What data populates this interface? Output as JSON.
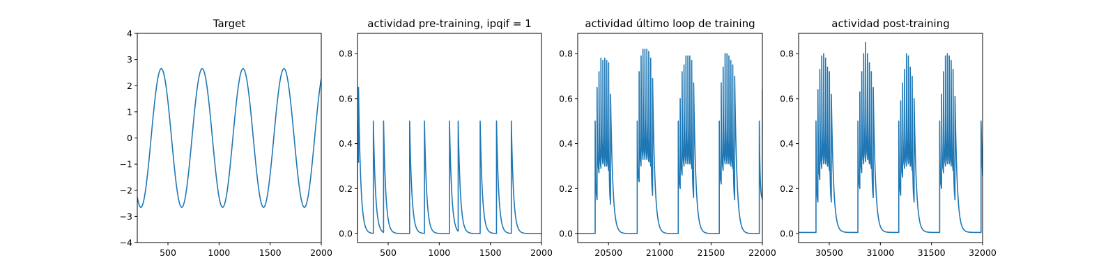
{
  "chart_data": [
    {
      "type": "line",
      "title": "Target",
      "xlabel": "",
      "ylabel": "",
      "xlim": [
        200,
        2000
      ],
      "ylim": [
        -4,
        4
      ],
      "xticks": [
        500,
        1000,
        1500,
        2000
      ],
      "yticks": [
        -4,
        -3,
        -2,
        -1,
        0,
        1,
        2,
        3,
        4
      ],
      "xtick_labels": [
        "500",
        "1000",
        "1500",
        "2000"
      ],
      "ytick_labels": [
        "−4",
        "−3",
        "−2",
        "−1",
        "0",
        "1",
        "2",
        "3",
        "4"
      ],
      "grid": false,
      "series": [
        {
          "color": "#1f77b4",
          "shape": "sine",
          "amplitude": 2.65,
          "period": 400,
          "peaks_x": [
            435,
            835,
            1235,
            1635
          ],
          "x": [
            200,
            235,
            335,
            435,
            535,
            635,
            735,
            835,
            935,
            1035,
            1135,
            1235,
            1335,
            1435,
            1535,
            1635,
            1735,
            1835,
            1935,
            2000
          ],
          "values": [
            -2.45,
            -2.65,
            0,
            2.65,
            0,
            -2.65,
            0,
            2.65,
            0,
            -2.65,
            0,
            2.65,
            0,
            -2.65,
            0,
            2.65,
            0,
            -2.65,
            0,
            2.2
          ]
        }
      ]
    },
    {
      "type": "line",
      "title": "actividad pre-training, ipqif = 1",
      "xlabel": "",
      "ylabel": "",
      "xlim": [
        200,
        2000
      ],
      "ylim": [
        -0.04,
        0.89
      ],
      "xticks": [
        500,
        1000,
        1500,
        2000
      ],
      "yticks": [
        0.0,
        0.2,
        0.4,
        0.6,
        0.8
      ],
      "xtick_labels": [
        "500",
        "1000",
        "1500",
        "2000"
      ],
      "ytick_labels": [
        "0.0",
        "0.2",
        "0.4",
        "0.6",
        "0.8"
      ],
      "grid": false,
      "series": [
        {
          "color": "#1f77b4",
          "shape": "spikes",
          "decay": 22,
          "spikes": [
            {
              "x": 200,
              "y": 0.5
            },
            {
              "x": 210,
              "y": 0.65
            },
            {
              "x": 355,
              "y": 0.5
            },
            {
              "x": 455,
              "y": 0.5
            },
            {
              "x": 710,
              "y": 0.5
            },
            {
              "x": 855,
              "y": 0.5
            },
            {
              "x": 1100,
              "y": 0.5
            },
            {
              "x": 1185,
              "y": 0.5
            },
            {
              "x": 1400,
              "y": 0.5
            },
            {
              "x": 1560,
              "y": 0.5
            },
            {
              "x": 1705,
              "y": 0.5
            }
          ]
        }
      ]
    },
    {
      "type": "line",
      "title": "actividad último loop de training",
      "xlabel": "",
      "ylabel": "",
      "xlim": [
        20200,
        22000
      ],
      "ylim": [
        -0.04,
        0.89
      ],
      "xticks": [
        20500,
        21000,
        21500,
        22000
      ],
      "yticks": [
        0.0,
        0.2,
        0.4,
        0.6,
        0.8
      ],
      "xtick_labels": [
        "20500",
        "21000",
        "21500",
        "22000"
      ],
      "ytick_labels": [
        "0.0",
        "0.2",
        "0.4",
        "0.6",
        "0.8"
      ],
      "grid": false,
      "series": [
        {
          "color": "#1f77b4",
          "shape": "bursts",
          "decay": 22,
          "baseline": 0.0,
          "bursts": [
            {
              "x_start": 20370,
              "x_end": 20520,
              "peaks": [
                0.5,
                0.65,
                0.72,
                0.78,
                0.77,
                0.78,
                0.77,
                0.76,
                0.62
              ],
              "troughs": [
                0.15,
                0.27,
                0.29,
                0.31,
                0.3,
                0.3,
                0.28,
                0.13
              ]
            },
            {
              "x_start": 20780,
              "x_end": 20930,
              "peaks": [
                0.5,
                0.72,
                0.79,
                0.82,
                0.82,
                0.82,
                0.81,
                0.78,
                0.69
              ],
              "troughs": [
                0.23,
                0.3,
                0.33,
                0.33,
                0.33,
                0.32,
                0.3,
                0.17
              ]
            },
            {
              "x_start": 21180,
              "x_end": 21330,
              "peaks": [
                0.5,
                0.6,
                0.72,
                0.75,
                0.79,
                0.79,
                0.79,
                0.77,
                0.67
              ],
              "troughs": [
                0.2,
                0.26,
                0.3,
                0.31,
                0.31,
                0.31,
                0.29,
                0.16
              ]
            },
            {
              "x_start": 21580,
              "x_end": 21730,
              "peaks": [
                0.5,
                0.67,
                0.74,
                0.8,
                0.8,
                0.79,
                0.77,
                0.75,
                0.7
              ],
              "troughs": [
                0.22,
                0.28,
                0.31,
                0.31,
                0.31,
                0.3,
                0.29,
                0.15
              ]
            },
            {
              "x_start": 21970,
              "x_end": 22000,
              "peaks": [
                0.5,
                0.64
              ],
              "troughs": [
                0.15
              ]
            }
          ]
        }
      ]
    },
    {
      "type": "line",
      "title": "actividad post-training",
      "xlabel": "",
      "ylabel": "",
      "xlim": [
        30200,
        32000
      ],
      "ylim": [
        -0.04,
        0.89
      ],
      "xticks": [
        30500,
        31000,
        31500,
        32000
      ],
      "yticks": [
        0.0,
        0.2,
        0.4,
        0.6,
        0.8
      ],
      "xtick_labels": [
        "30500",
        "31000",
        "31500",
        "32000"
      ],
      "ytick_labels": [
        "0.0",
        "0.2",
        "0.4",
        "0.6",
        "0.8"
      ],
      "grid": false,
      "series": [
        {
          "color": "#1f77b4",
          "shape": "bursts",
          "decay": 22,
          "baseline": 0.005,
          "bursts": [
            {
              "x_start": 30370,
              "x_end": 30520,
              "peaks": [
                0.5,
                0.64,
                0.73,
                0.79,
                0.8,
                0.78,
                0.74,
                0.72,
                0.62
              ],
              "troughs": [
                0.14,
                0.24,
                0.29,
                0.31,
                0.31,
                0.3,
                0.28,
                0.14
              ]
            },
            {
              "x_start": 30780,
              "x_end": 30930,
              "peaks": [
                0.5,
                0.63,
                0.72,
                0.8,
                0.85,
                0.8,
                0.76,
                0.72,
                0.65
              ],
              "troughs": [
                0.2,
                0.27,
                0.31,
                0.32,
                0.33,
                0.31,
                0.29,
                0.16
              ]
            },
            {
              "x_start": 31180,
              "x_end": 31330,
              "peaks": [
                0.5,
                0.59,
                0.67,
                0.73,
                0.8,
                0.79,
                0.74,
                0.7,
                0.6
              ],
              "troughs": [
                0.17,
                0.25,
                0.29,
                0.3,
                0.31,
                0.3,
                0.28,
                0.14
              ]
            },
            {
              "x_start": 31580,
              "x_end": 31730,
              "peaks": [
                0.5,
                0.62,
                0.72,
                0.79,
                0.8,
                0.79,
                0.77,
                0.73,
                0.61
              ],
              "troughs": [
                0.2,
                0.27,
                0.3,
                0.31,
                0.31,
                0.3,
                0.28,
                0.15
              ]
            },
            {
              "x_start": 31985,
              "x_end": 32000,
              "peaks": [
                0.5
              ],
              "troughs": []
            }
          ]
        }
      ]
    }
  ]
}
